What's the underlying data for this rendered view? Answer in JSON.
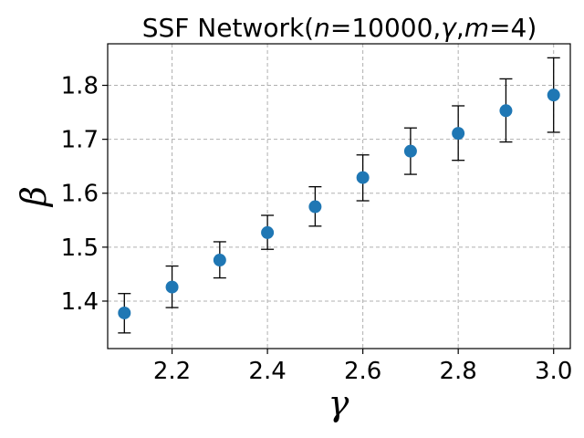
{
  "chart_data": {
    "type": "scatter",
    "title": "SSF Network(",
    "title_parts": {
      "prefix": "SSF Network(",
      "n_var": "n",
      "n_value": "=10000,",
      "gamma_var": "γ",
      "sep": ",",
      "m_var": "m",
      "m_value": "=4)"
    },
    "xlabel": "γ",
    "ylabel": "β",
    "xlim": [
      2.065,
      3.035
    ],
    "ylim": [
      1.312,
      1.877
    ],
    "xticks": [
      2.2,
      2.4,
      2.6,
      2.8,
      3.0
    ],
    "xtick_labels": [
      "2.2",
      "2.4",
      "2.6",
      "2.8",
      "3.0"
    ],
    "yticks": [
      1.4,
      1.5,
      1.6,
      1.7,
      1.8
    ],
    "ytick_labels": [
      "1.4",
      "1.5",
      "1.6",
      "1.7",
      "1.8"
    ],
    "grid": true,
    "marker_color": "#1f77b4",
    "errorbar_color": "#000000",
    "x": [
      2.1,
      2.2,
      2.3,
      2.4,
      2.5,
      2.6,
      2.7,
      2.8,
      2.9,
      3.0
    ],
    "y": [
      1.378,
      1.426,
      1.476,
      1.527,
      1.575,
      1.629,
      1.678,
      1.711,
      1.753,
      1.782
    ],
    "y_lower": [
      1.341,
      1.388,
      1.443,
      1.496,
      1.539,
      1.586,
      1.635,
      1.661,
      1.695,
      1.713
    ],
    "y_upper": [
      1.414,
      1.465,
      1.51,
      1.559,
      1.612,
      1.671,
      1.721,
      1.762,
      1.812,
      1.851
    ]
  }
}
